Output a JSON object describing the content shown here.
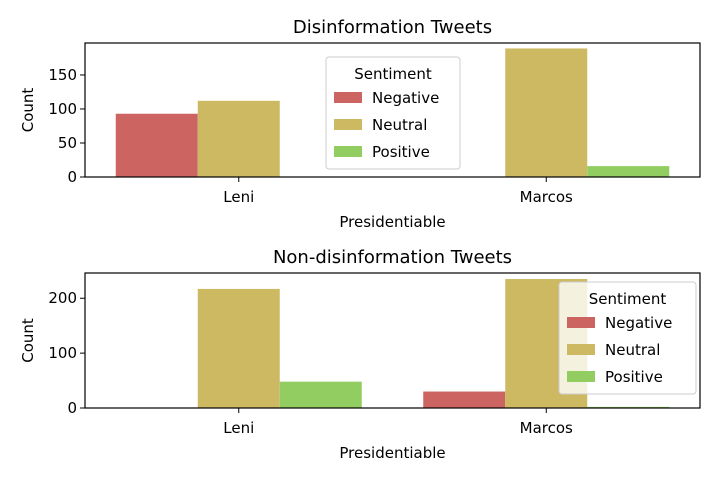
{
  "chart_data": [
    {
      "type": "bar",
      "title": "Disinformation Tweets",
      "xlabel": "Presidentiable",
      "ylabel": "Count",
      "categories": [
        "Leni",
        "Marcos"
      ],
      "ylim": [
        0,
        197
      ],
      "yticks": [
        0,
        50,
        100,
        150
      ],
      "legend": {
        "title": "Sentiment",
        "position": "top-center"
      },
      "series": [
        {
          "name": "Negative",
          "color": "#cc6461",
          "values": [
            93,
            0
          ]
        },
        {
          "name": "Neutral",
          "color": "#ccb962",
          "values": [
            112,
            189
          ]
        },
        {
          "name": "Positive",
          "color": "#91cd61",
          "values": [
            0,
            16
          ]
        }
      ]
    },
    {
      "type": "bar",
      "title": "Non-disinformation Tweets",
      "xlabel": "Presidentiable",
      "ylabel": "Count",
      "categories": [
        "Leni",
        "Marcos"
      ],
      "ylim": [
        0,
        246
      ],
      "yticks": [
        0,
        100,
        200
      ],
      "legend": {
        "title": "Sentiment",
        "position": "top-right"
      },
      "series": [
        {
          "name": "Negative",
          "color": "#cc6461",
          "values": [
            0,
            30
          ]
        },
        {
          "name": "Neutral",
          "color": "#ccb962",
          "values": [
            217,
            235
          ]
        },
        {
          "name": "Positive",
          "color": "#91cd61",
          "values": [
            48,
            2
          ]
        }
      ]
    }
  ]
}
